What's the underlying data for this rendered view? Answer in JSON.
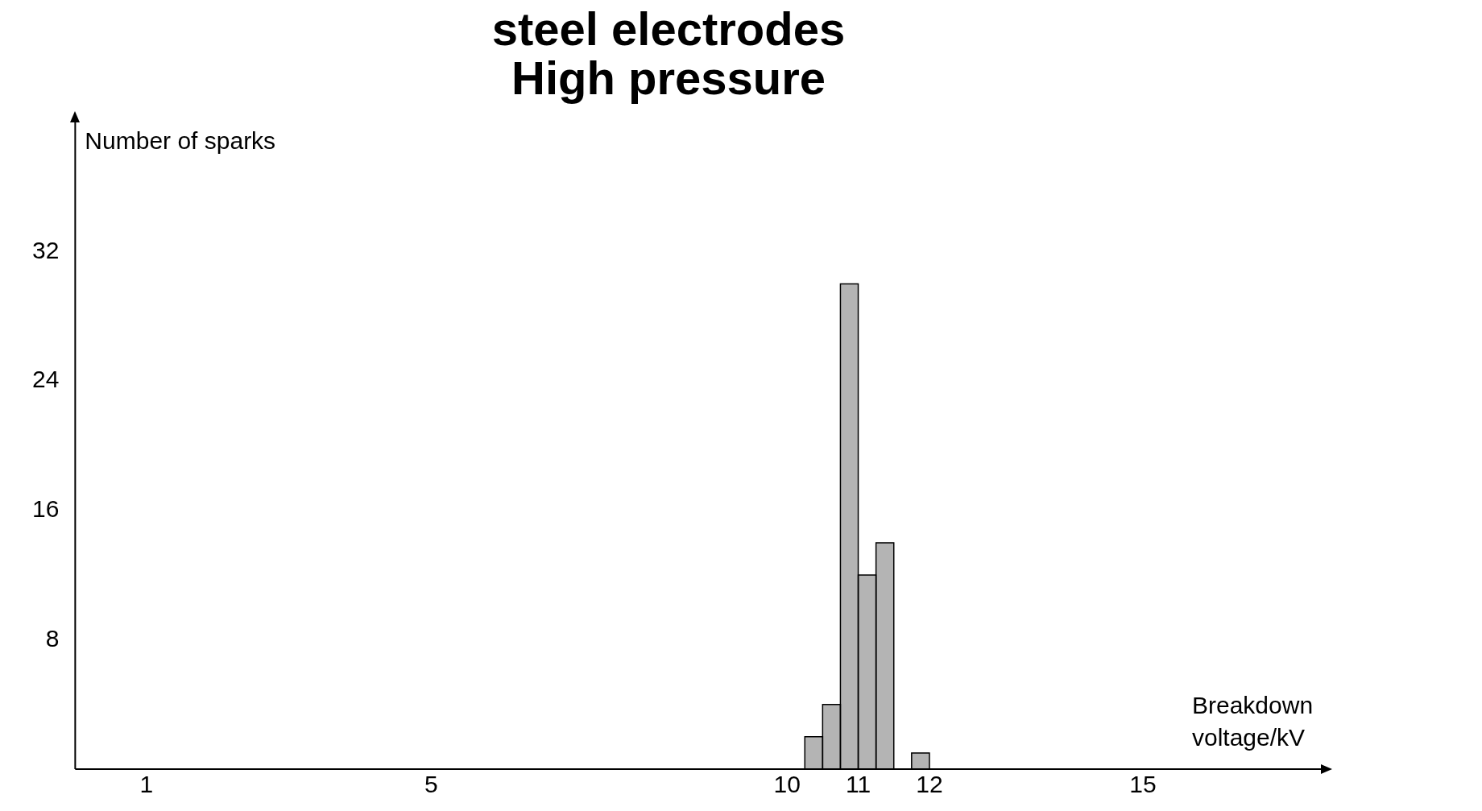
{
  "chart_data": {
    "type": "histogram",
    "title": "steel electrodes\nHigh pressure",
    "xlabel": "Breakdown\nvoltage/kV",
    "ylabel": "Number of sparks",
    "bins": [
      10.25,
      10.5,
      10.75,
      11,
      11.25,
      11.5,
      11.75,
      12
    ],
    "values": [
      2,
      4,
      30,
      12,
      14,
      0,
      1
    ],
    "color": "#b4b4b4",
    "xlim": [
      0,
      17.5
    ],
    "xticks": [
      1,
      5,
      10,
      11,
      12,
      15
    ],
    "ylim": [
      0,
      40
    ],
    "yticks": [
      8,
      16,
      24,
      32
    ],
    "grid": false,
    "legend": false
  }
}
